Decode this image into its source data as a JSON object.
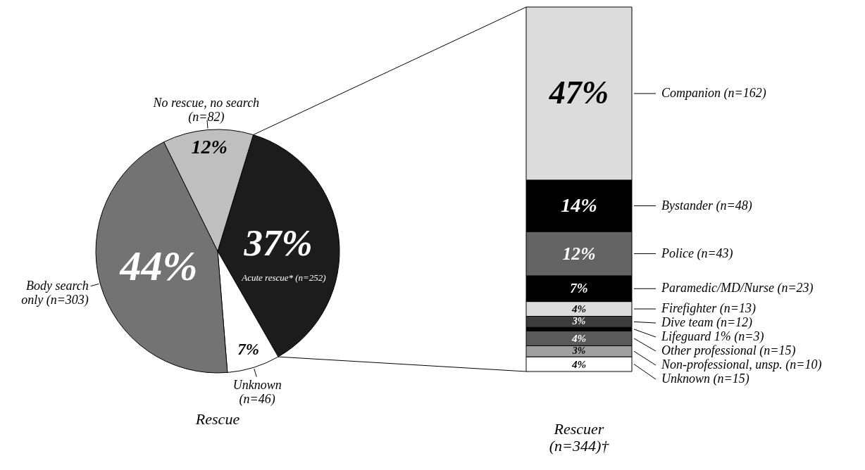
{
  "chart_data": [
    {
      "type": "pie",
      "title": "Rescue",
      "categories": [
        "Acute rescue* (n=252)",
        "Unknown\n(n=46)",
        "Body search\nonly (n=303)",
        "No rescue, no search\n(n=82)"
      ],
      "values": [
        37,
        7,
        44,
        12
      ],
      "value_labels": [
        "37%",
        "7%",
        "44%",
        "12%"
      ],
      "colors": [
        "#1c1c1c",
        "#ffffff",
        "#737373",
        "#bfbfbf"
      ]
    },
    {
      "type": "bar",
      "stacked": true,
      "legend": "right",
      "title": "Rescuer\n(n=344)†",
      "categories": [
        null
      ],
      "series": [
        {
          "name": "Unknown (n=15)",
          "color": "#ffffff",
          "values": [
            4
          ],
          "value_labels": [
            "4%"
          ]
        },
        {
          "name": "Non-professional, unsp. (n=10)",
          "color": "#a0a0a0",
          "values": [
            3
          ],
          "value_labels": [
            "3%"
          ]
        },
        {
          "name": "Other professional (n=15)",
          "color": "#5a5a5a",
          "values": [
            4
          ],
          "value_labels": [
            "4%"
          ]
        },
        {
          "name": "Lifeguard 1% (n=3)",
          "color": "#000000",
          "values": [
            1
          ],
          "value_labels": [
            null
          ]
        },
        {
          "name": "Dive team (n=12)",
          "color": "#3c3c3c",
          "values": [
            3
          ],
          "value_labels": [
            "3%"
          ]
        },
        {
          "name": "Firefighter (n=13)",
          "color": "#dcdcdc",
          "values": [
            4
          ],
          "value_labels": [
            "4%"
          ]
        },
        {
          "name": "Paramedic/MD/Nurse (n=23)",
          "color": "#000000",
          "values": [
            7
          ],
          "value_labels": [
            "7%"
          ]
        },
        {
          "name": "Police (n=43)",
          "color": "#646464",
          "values": [
            12
          ],
          "value_labels": [
            "12%"
          ]
        },
        {
          "name": "Bystander (n=48)",
          "color": "#000000",
          "values": [
            14
          ],
          "value_labels": [
            "14%"
          ]
        },
        {
          "name": "Companion (n=162)",
          "color": "#dcdcdc",
          "values": [
            47
          ],
          "value_labels": [
            "47%"
          ]
        }
      ]
    }
  ]
}
